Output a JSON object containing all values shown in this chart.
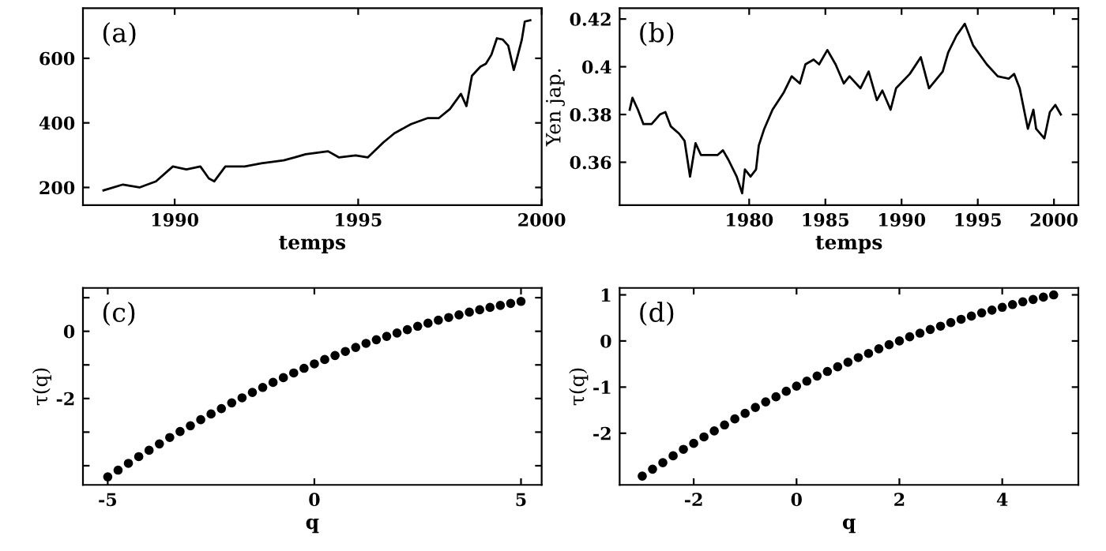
{
  "chart_data": [
    {
      "type": "line",
      "xlabel": "temps",
      "annotations": [
        "(a)"
      ],
      "xlim": [
        1987.5,
        2000
      ],
      "xticks": [
        1990,
        1995,
        2000
      ],
      "ylim": [
        145,
        755
      ],
      "yticks": [
        200,
        400,
        600
      ],
      "grid": false,
      "series": [
        {
          "color": "#000000",
          "x": [
            1988.06,
            1988.59,
            1989.04,
            1989.49,
            1989.95,
            1990.32,
            1990.7,
            1990.93,
            1991.08,
            1991.38,
            1991.91,
            1992.36,
            1992.97,
            1993.27,
            1993.57,
            1994.18,
            1994.48,
            1994.93,
            1995.26,
            1995.69,
            1995.99,
            1996.44,
            1996.9,
            1997.2,
            1997.5,
            1997.8,
            1997.95,
            1998.1,
            1998.33,
            1998.48,
            1998.63,
            1998.78,
            1998.94,
            1999.09,
            1999.24,
            1999.31,
            1999.46,
            1999.54,
            1999.69
          ],
          "values": [
            191,
            209,
            200,
            219,
            265,
            256,
            265,
            228,
            219,
            265,
            265,
            275,
            284,
            293,
            303,
            312,
            293,
            299,
            293,
            340,
            368,
            396,
            415,
            415,
            443,
            490,
            452,
            546,
            574,
            583,
            611,
            662,
            658,
            639,
            564,
            592,
            658,
            714,
            718
          ]
        }
      ]
    },
    {
      "type": "line",
      "xlabel": "temps",
      "ylabel": "Yen jap.",
      "annotations": [
        "(b)"
      ],
      "xlim": [
        1971.5,
        2001.6
      ],
      "xticks": [
        1980,
        1985,
        1990,
        1995,
        2000
      ],
      "ylim": [
        0.342,
        0.4245
      ],
      "yticks": [
        {
          "value": 0.36,
          "label": "0.36"
        },
        {
          "value": 0.38,
          "label": "0.38"
        },
        {
          "value": 0.4,
          "label": "0.4"
        },
        {
          "value": 0.42,
          "label": "0.42"
        }
      ],
      "grid": false,
      "series": [
        {
          "color": "#000000",
          "x": [
            1972.16,
            1972.34,
            1972.7,
            1973.06,
            1973.6,
            1974.14,
            1974.5,
            1974.86,
            1975.4,
            1975.76,
            1976.12,
            1976.48,
            1976.84,
            1977.38,
            1977.92,
            1978.28,
            1978.64,
            1979.18,
            1979.54,
            1979.72,
            1980.09,
            1980.45,
            1980.63,
            1980.99,
            1981.53,
            1982.25,
            1982.79,
            1983.33,
            1983.69,
            1984.23,
            1984.59,
            1985.13,
            1985.67,
            1986.21,
            1986.58,
            1987.3,
            1987.84,
            1988.38,
            1988.74,
            1989.28,
            1989.64,
            1990.54,
            1991.26,
            1991.8,
            1992.7,
            1993.06,
            1993.6,
            1994.15,
            1994.69,
            1995.59,
            1996.31,
            1997.03,
            1997.39,
            1997.75,
            1998.29,
            1998.65,
            1998.83,
            1999.37,
            1999.73,
            2000.09,
            2000.45
          ],
          "values": [
            0.382,
            0.387,
            0.382,
            0.376,
            0.376,
            0.38,
            0.381,
            0.375,
            0.372,
            0.369,
            0.354,
            0.368,
            0.363,
            0.363,
            0.363,
            0.365,
            0.361,
            0.354,
            0.347,
            0.357,
            0.354,
            0.357,
            0.367,
            0.374,
            0.382,
            0.389,
            0.396,
            0.393,
            0.401,
            0.403,
            0.401,
            0.407,
            0.401,
            0.393,
            0.396,
            0.391,
            0.398,
            0.386,
            0.39,
            0.382,
            0.391,
            0.397,
            0.404,
            0.391,
            0.398,
            0.406,
            0.413,
            0.418,
            0.409,
            0.401,
            0.396,
            0.395,
            0.397,
            0.391,
            0.374,
            0.382,
            0.374,
            0.37,
            0.381,
            0.384,
            0.38
          ]
        }
      ]
    },
    {
      "type": "scatter",
      "xlabel": "q",
      "ylabel": "τ(q)",
      "annotations": [
        "(c)"
      ],
      "xlim": [
        -5.6,
        5.5
      ],
      "xticks": [
        -5,
        0,
        5
      ],
      "ylim": [
        -4.57,
        1.29
      ],
      "yticks": [
        {
          "value": -4,
          "label": null
        },
        {
          "value": -3,
          "label": null
        },
        -2,
        {
          "value": -1,
          "label": null
        },
        0,
        {
          "value": 1,
          "label": null
        }
      ],
      "grid": false,
      "marker": "circle",
      "series": [
        {
          "color": "#000000",
          "x": [
            -5,
            -4.75,
            -4.5,
            -4.25,
            -4,
            -3.75,
            -3.5,
            -3.25,
            -3,
            -2.75,
            -2.5,
            -2.25,
            -2,
            -1.75,
            -1.5,
            -1.25,
            -1,
            -0.75,
            -0.5,
            -0.25,
            0,
            0.25,
            0.5,
            0.75,
            1,
            1.25,
            1.5,
            1.75,
            2,
            2.25,
            2.5,
            2.75,
            3,
            3.25,
            3.5,
            3.75,
            4,
            4.25,
            4.5,
            4.75,
            5
          ],
          "values": [
            -4.33,
            -4.13,
            -3.93,
            -3.73,
            -3.54,
            -3.35,
            -3.16,
            -2.98,
            -2.81,
            -2.63,
            -2.46,
            -2.3,
            -2.13,
            -1.98,
            -1.82,
            -1.67,
            -1.52,
            -1.38,
            -1.24,
            -1.1,
            -0.97,
            -0.84,
            -0.72,
            -0.6,
            -0.48,
            -0.36,
            -0.25,
            -0.15,
            -0.05,
            0.05,
            0.15,
            0.24,
            0.33,
            0.41,
            0.49,
            0.57,
            0.64,
            0.71,
            0.77,
            0.83,
            0.89
          ]
        }
      ]
    },
    {
      "type": "scatter",
      "xlabel": "q",
      "ylabel": "τ(q)",
      "annotations": [
        "(d)"
      ],
      "xlim": [
        -3.44,
        5.48
      ],
      "xticks": [
        -2,
        0,
        2,
        4
      ],
      "ylim": [
        -3.12,
        1.15
      ],
      "yticks": [
        -2,
        -1,
        0,
        1
      ],
      "grid": false,
      "marker": "circle",
      "series": [
        {
          "color": "#000000",
          "x": [
            -3,
            -2.8,
            -2.6,
            -2.4,
            -2.2,
            -2,
            -1.8,
            -1.6,
            -1.4,
            -1.2,
            -1,
            -0.8,
            -0.6,
            -0.4,
            -0.2,
            0,
            0.2,
            0.4,
            0.6,
            0.8,
            1,
            1.2,
            1.4,
            1.6,
            1.8,
            2,
            2.2,
            2.4,
            2.6,
            2.8,
            3,
            3.2,
            3.4,
            3.6,
            3.8,
            4,
            4.2,
            4.4,
            4.6,
            4.8,
            5
          ],
          "values": [
            -2.93,
            -2.78,
            -2.64,
            -2.49,
            -2.35,
            -2.22,
            -2.08,
            -1.95,
            -1.82,
            -1.69,
            -1.57,
            -1.44,
            -1.32,
            -1.21,
            -1.09,
            -0.98,
            -0.87,
            -0.76,
            -0.66,
            -0.56,
            -0.46,
            -0.36,
            -0.27,
            -0.17,
            -0.08,
            0.0,
            0.09,
            0.17,
            0.25,
            0.32,
            0.4,
            0.47,
            0.54,
            0.61,
            0.67,
            0.73,
            0.79,
            0.85,
            0.9,
            0.95,
            1.0
          ]
        }
      ]
    }
  ]
}
